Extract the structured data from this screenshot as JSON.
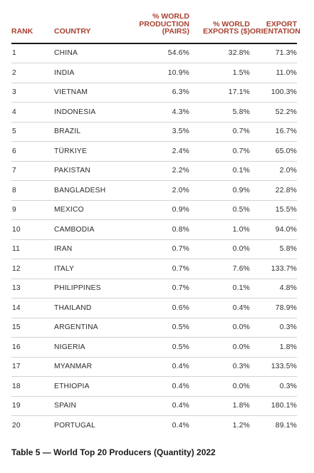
{
  "headers": {
    "rank": "RANK",
    "country": "COUNTRY",
    "production_line1": "% WORLD",
    "production_line2": "PRODUCTION",
    "production_line3": "(PAIRS)",
    "exports_line1": "% WORLD",
    "exports_line2": "EXPORTS ($)",
    "orientation_line1": "EXPORT",
    "orientation_line2": "ORIENTATION"
  },
  "rows": [
    {
      "rank": "1",
      "country": "CHINA",
      "production": "54.6%",
      "exports": "32.8%",
      "orientation": "71.3%"
    },
    {
      "rank": "2",
      "country": "INDIA",
      "production": "10.9%",
      "exports": "1.5%",
      "orientation": "11.0%"
    },
    {
      "rank": "3",
      "country": "VIETNAM",
      "production": "6.3%",
      "exports": "17.1%",
      "orientation": "100.3%"
    },
    {
      "rank": "4",
      "country": "INDONESIA",
      "production": "4.3%",
      "exports": "5.8%",
      "orientation": "52.2%"
    },
    {
      "rank": "5",
      "country": "BRAZIL",
      "production": "3.5%",
      "exports": "0.7%",
      "orientation": "16.7%"
    },
    {
      "rank": "6",
      "country": "TÜRKIYE",
      "production": "2.4%",
      "exports": "0.7%",
      "orientation": "65.0%"
    },
    {
      "rank": "7",
      "country": "PAKISTAN",
      "production": "2.2%",
      "exports": "0.1%",
      "orientation": "2.0%"
    },
    {
      "rank": "8",
      "country": "BANGLADESH",
      "production": "2.0%",
      "exports": "0.9%",
      "orientation": "22.8%"
    },
    {
      "rank": "9",
      "country": "MEXICO",
      "production": "0.9%",
      "exports": "0.5%",
      "orientation": "15.5%"
    },
    {
      "rank": "10",
      "country": "CAMBODIA",
      "production": "0.8%",
      "exports": "1.0%",
      "orientation": "94.0%"
    },
    {
      "rank": "11",
      "country": "IRAN",
      "production": "0.7%",
      "exports": "0.0%",
      "orientation": "5.8%"
    },
    {
      "rank": "12",
      "country": "ITALY",
      "production": "0.7%",
      "exports": "7.6%",
      "orientation": "133.7%"
    },
    {
      "rank": "13",
      "country": "PHILIPPINES",
      "production": "0.7%",
      "exports": "0.1%",
      "orientation": "4.8%"
    },
    {
      "rank": "14",
      "country": "THAILAND",
      "production": "0.6%",
      "exports": "0.4%",
      "orientation": "78.9%"
    },
    {
      "rank": "15",
      "country": "ARGENTINA",
      "production": "0.5%",
      "exports": "0.0%",
      "orientation": "0.3%"
    },
    {
      "rank": "16",
      "country": "NIGERIA",
      "production": "0.5%",
      "exports": "0.0%",
      "orientation": "1.8%"
    },
    {
      "rank": "17",
      "country": "MYANMAR",
      "production": "0.4%",
      "exports": "0.3%",
      "orientation": "133.5%"
    },
    {
      "rank": "18",
      "country": "ETHIOPIA",
      "production": "0.4%",
      "exports": "0.0%",
      "orientation": "0.3%"
    },
    {
      "rank": "19",
      "country": "SPAIN",
      "production": "0.4%",
      "exports": "1.8%",
      "orientation": "180.1%"
    },
    {
      "rank": "20",
      "country": "PORTUGAL",
      "production": "0.4%",
      "exports": "1.2%",
      "orientation": "89.1%"
    }
  ],
  "caption": "Table 5 — World Top 20 Producers (Quantity) 2022",
  "colors": {
    "header_text": "#a8402f",
    "body_text": "#2b2b2b",
    "header_rule": "#1a1a1a",
    "row_rule": "#d3d3d3"
  }
}
